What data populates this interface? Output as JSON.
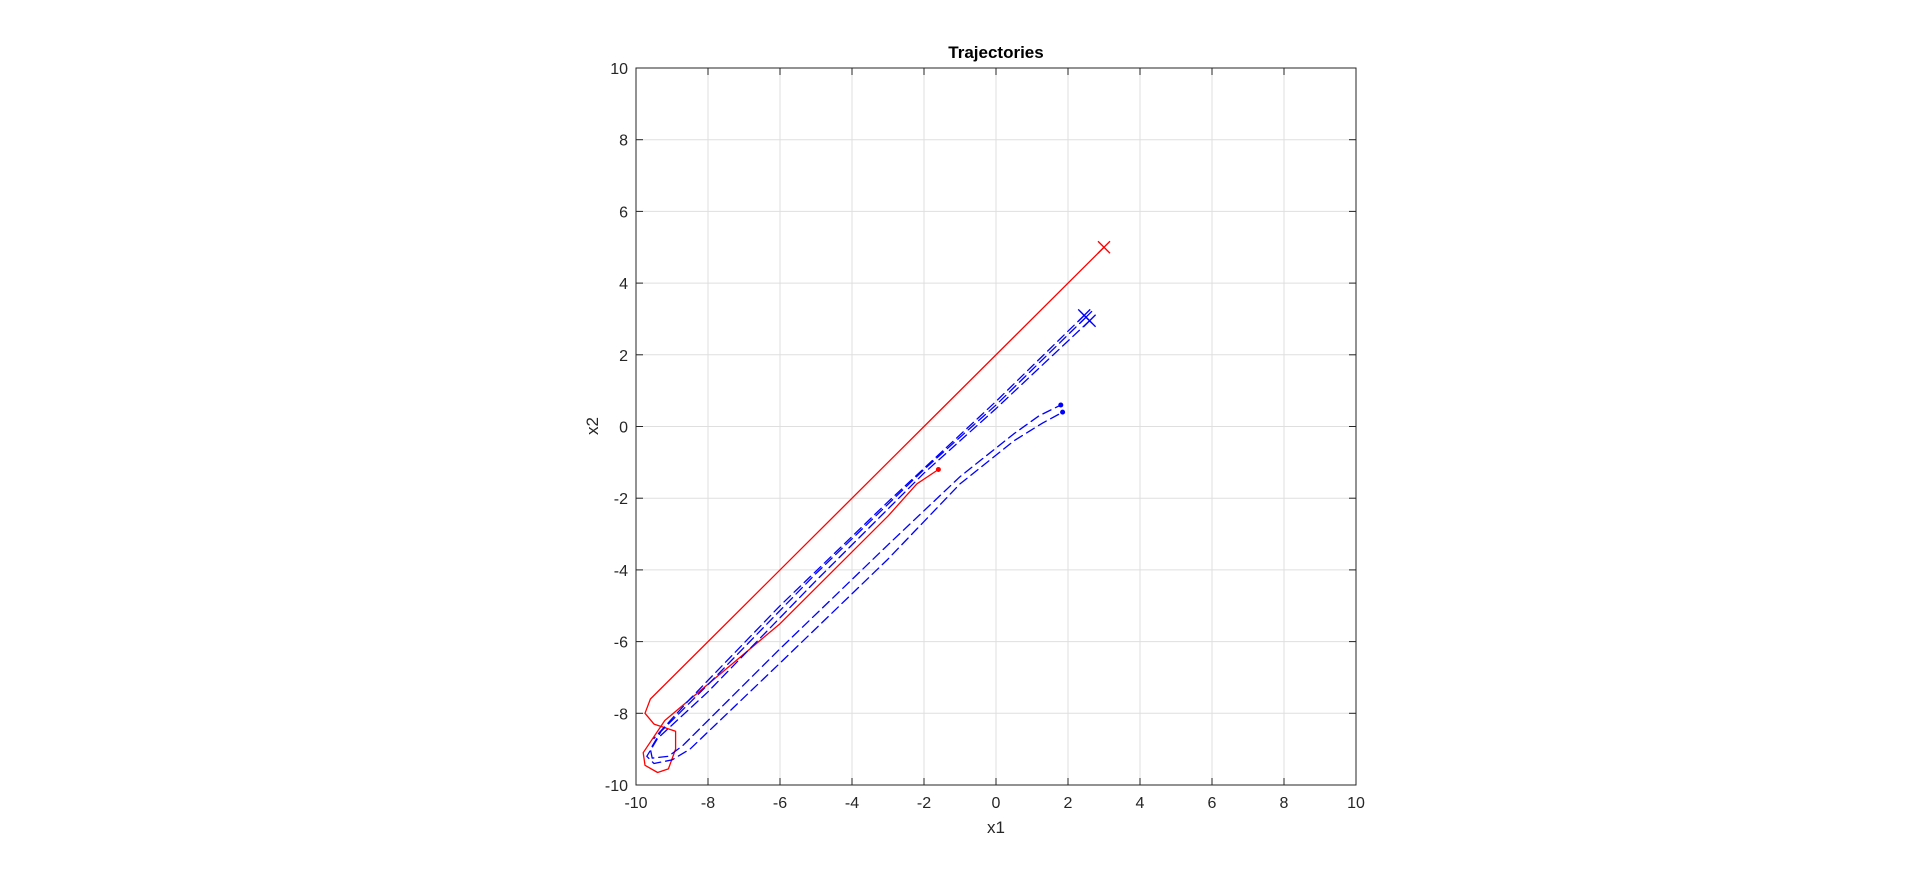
{
  "chart_data": {
    "type": "line",
    "title": "Trajectories",
    "xlabel": "x1",
    "ylabel": "x2",
    "xlim": [
      -10,
      10
    ],
    "ylim": [
      -10,
      10
    ],
    "xticks": [
      -10,
      -8,
      -6,
      -4,
      -2,
      0,
      2,
      4,
      6,
      8,
      10
    ],
    "yticks": [
      -10,
      -8,
      -6,
      -4,
      -2,
      0,
      2,
      4,
      6,
      8,
      10
    ],
    "grid": true,
    "colors": {
      "red": "#ff0000",
      "blue": "#0000ff",
      "grid": "#dfdfdf",
      "axis": "#262626"
    },
    "series": [
      {
        "style": "solid",
        "color": "#ff0000",
        "start_marker": "x",
        "end_marker": "dot",
        "points": [
          [
            3.0,
            5.0
          ],
          [
            -2.0,
            0.0
          ],
          [
            -7.0,
            -5.0
          ],
          [
            -9.6,
            -7.6
          ],
          [
            -9.75,
            -8.0
          ],
          [
            -9.5,
            -8.3
          ],
          [
            -8.9,
            -8.5
          ],
          [
            -8.9,
            -9.0
          ],
          [
            -9.1,
            -9.55
          ],
          [
            -9.4,
            -9.65
          ],
          [
            -9.75,
            -9.45
          ],
          [
            -9.8,
            -9.1
          ],
          [
            -9.2,
            -8.2
          ],
          [
            -6.0,
            -5.5
          ],
          [
            -3.0,
            -2.5
          ],
          [
            -2.2,
            -1.6
          ],
          [
            -1.6,
            -1.2
          ]
        ]
      },
      {
        "style": "dashed",
        "color": "#0000ff",
        "start_marker": "x",
        "end_marker": "dot",
        "points": [
          [
            2.5,
            3.05
          ],
          [
            0.0,
            0.6
          ],
          [
            -2.0,
            -1.2
          ],
          [
            -5.0,
            -4.1
          ],
          [
            -8.0,
            -7.2
          ],
          [
            -9.3,
            -8.5
          ],
          [
            -9.6,
            -9.0
          ],
          [
            -9.55,
            -9.25
          ],
          [
            -9.1,
            -9.2
          ],
          [
            -8.7,
            -8.9
          ],
          [
            -6.0,
            -6.2
          ],
          [
            -3.0,
            -3.3
          ],
          [
            -1.0,
            -1.4
          ],
          [
            0.5,
            -0.2
          ],
          [
            1.2,
            0.3
          ],
          [
            1.8,
            0.6
          ]
        ]
      },
      {
        "style": "dashed",
        "color": "#0000ff",
        "start_marker": "x",
        "end_marker": "dot",
        "points": [
          [
            2.6,
            2.95
          ],
          [
            0.0,
            0.5
          ],
          [
            -2.0,
            -1.3
          ],
          [
            -5.0,
            -4.3
          ],
          [
            -8.0,
            -7.4
          ],
          [
            -9.4,
            -8.7
          ],
          [
            -9.7,
            -9.2
          ],
          [
            -9.5,
            -9.4
          ],
          [
            -9.0,
            -9.3
          ],
          [
            -8.5,
            -9.0
          ],
          [
            -6.0,
            -6.6
          ],
          [
            -3.0,
            -3.7
          ],
          [
            -1.0,
            -1.6
          ],
          [
            0.5,
            -0.4
          ],
          [
            1.3,
            0.1
          ],
          [
            1.85,
            0.4
          ]
        ]
      },
      {
        "style": "dashed",
        "color": "#0000ff",
        "start_marker": "x",
        "end_marker": "none",
        "points": [
          [
            2.45,
            3.1
          ],
          [
            0.0,
            0.7
          ],
          [
            -3.0,
            -2.1
          ],
          [
            -6.0,
            -5.0
          ],
          [
            -8.5,
            -7.6
          ],
          [
            -9.5,
            -8.7
          ]
        ]
      }
    ]
  }
}
